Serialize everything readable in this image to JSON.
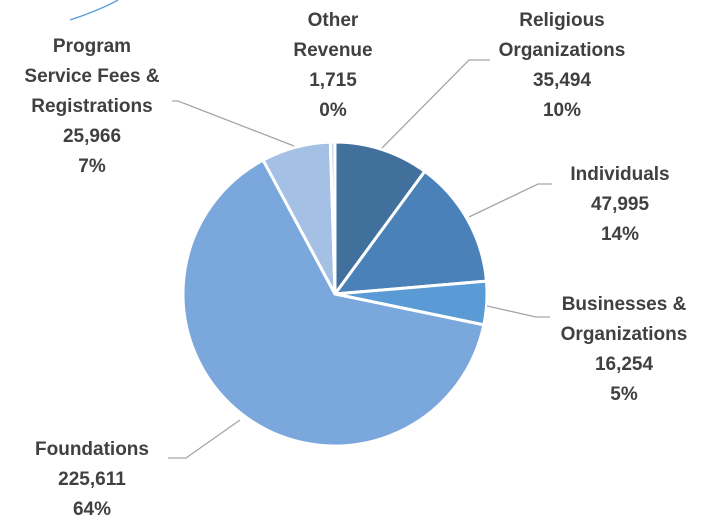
{
  "chart_data": {
    "type": "pie",
    "title": "",
    "start_angle_deg": 0,
    "direction": "clockwise",
    "slices": [
      {
        "name": "Religious Organizations",
        "label_lines": [
          "Religious",
          "Organizations"
        ],
        "value": 35494,
        "value_text": "35,494",
        "percent_text": "10%",
        "color": "#41709c"
      },
      {
        "name": "Individuals",
        "label_lines": [
          "Individuals"
        ],
        "value": 47995,
        "value_text": "47,995",
        "percent_text": "14%",
        "color": "#4a81b8"
      },
      {
        "name": "Businesses & Organizations",
        "label_lines": [
          "Businesses &",
          "Organizations"
        ],
        "value": 16254,
        "value_text": "16,254",
        "percent_text": "5%",
        "color": "#5b9bd5"
      },
      {
        "name": "Foundations",
        "label_lines": [
          "Foundations"
        ],
        "value": 225611,
        "value_text": "225,611",
        "percent_text": "64%",
        "color": "#7ba8dc"
      },
      {
        "name": "Program Service Fees & Registrations",
        "label_lines": [
          "Program",
          "Service Fees &",
          "Registrations"
        ],
        "value": 25966,
        "value_text": "25,966",
        "percent_text": "7%",
        "color": "#a4c0e5"
      },
      {
        "name": "Other Revenue",
        "label_lines": [
          "Other",
          "Revenue"
        ],
        "value": 1715,
        "value_text": "1,715",
        "percent_text": "0%",
        "color": "#c9d7ee"
      }
    ]
  }
}
